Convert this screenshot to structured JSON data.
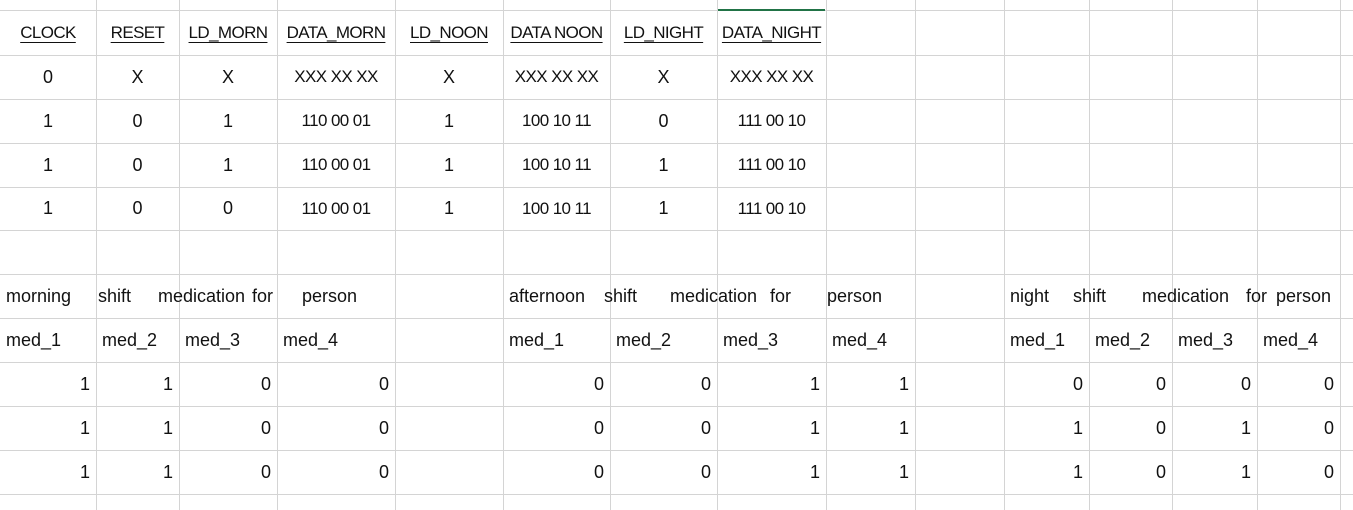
{
  "top_table": {
    "headers": [
      "CLOCK",
      "RESET",
      "LD_MORN",
      "DATA_MORN",
      "LD_NOON",
      "DATA NOON",
      "LD_NIGHT",
      "DATA_NIGHT"
    ],
    "rows": [
      [
        "0",
        "X",
        "X",
        "XXX XX XX",
        "X",
        "XXX XX XX",
        "X",
        "XXX XX XX"
      ],
      [
        "1",
        "0",
        "1",
        "110 00  01",
        "1",
        "100 10 11",
        "0",
        "111 00 10"
      ],
      [
        "1",
        "0",
        "1",
        "110 00  01",
        "1",
        "100 10 11",
        "1",
        "111 00 10"
      ],
      [
        "1",
        "0",
        "0",
        "110 00 01",
        "1",
        "100 10 11",
        "1",
        "111 00 10"
      ]
    ]
  },
  "morning": {
    "title_words": [
      "morning",
      "shift",
      "medication",
      "for",
      "person"
    ],
    "med_headers": [
      "med_1",
      "med_2",
      "med_3",
      "med_4"
    ],
    "rows": [
      [
        "1",
        "1",
        "0",
        "0"
      ],
      [
        "1",
        "1",
        "0",
        "0"
      ],
      [
        "1",
        "1",
        "0",
        "0"
      ]
    ]
  },
  "afternoon": {
    "title_words": [
      "afternoon",
      "shift",
      "medication",
      "for",
      "person"
    ],
    "med_headers": [
      "med_1",
      "med_2",
      "med_3",
      "med_4"
    ],
    "rows": [
      [
        "0",
        "0",
        "1",
        "1"
      ],
      [
        "0",
        "0",
        "1",
        "1"
      ],
      [
        "0",
        "0",
        "1",
        "1"
      ]
    ]
  },
  "night": {
    "title_words": [
      "night",
      "shift",
      "medication",
      "for",
      "person"
    ],
    "med_headers": [
      "med_1",
      "med_2",
      "med_3",
      "med_4"
    ],
    "rows": [
      [
        "0",
        "0",
        "0",
        "0"
      ],
      [
        "1",
        "0",
        "1",
        "0"
      ],
      [
        "1",
        "0",
        "1",
        "0"
      ]
    ]
  },
  "colors": {
    "gridline": "#d4d4d4",
    "selection": "#217346",
    "text": "#111111"
  }
}
